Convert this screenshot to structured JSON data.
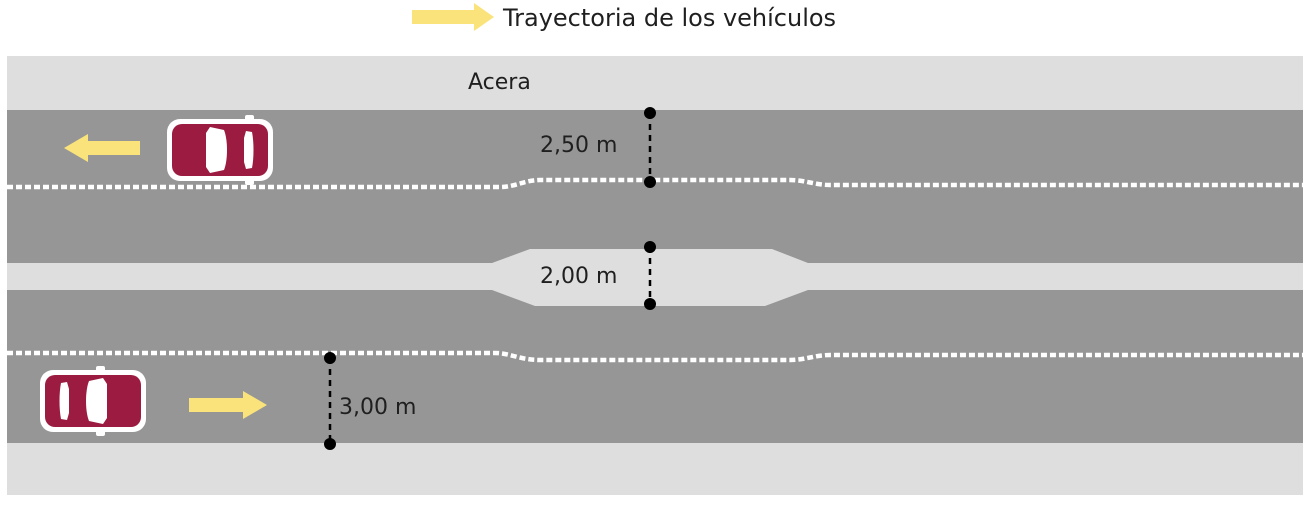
{
  "legend": {
    "label": "Trayectoria de los vehículos",
    "arrow_icon": "yellow-arrow-right-icon"
  },
  "labels": {
    "sidewalk": "Acera",
    "lane_width_top": "2,50 m",
    "median_width": "2,00 m",
    "lane_width_bottom": "3,00 m"
  },
  "colors": {
    "road": "#969696",
    "sidewalk": "#dedede",
    "median": "#dedede",
    "lane_marking": "#ffffff",
    "arrow": "#fbe37c",
    "car_body": "#9b1c40",
    "car_window": "#ffffff",
    "dimension_line": "#000000"
  },
  "icons": {
    "car_top": "car-top-view-icon",
    "car_bottom": "car-top-view-icon",
    "arrow_top": "yellow-arrow-left-icon",
    "arrow_bottom": "yellow-arrow-right-icon"
  }
}
